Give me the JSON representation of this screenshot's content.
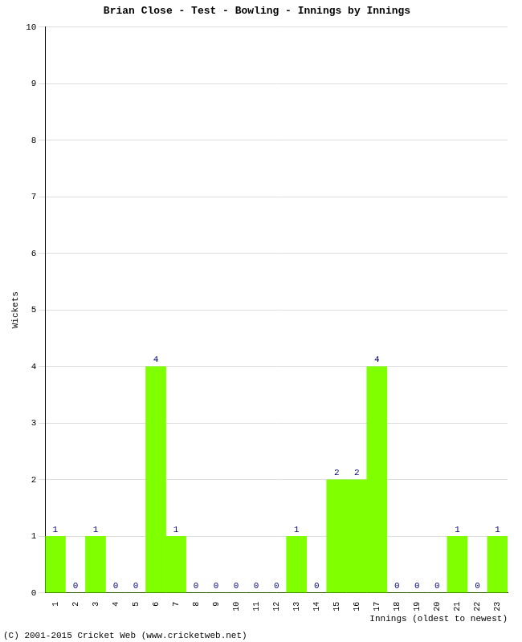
{
  "chart_data": {
    "type": "bar",
    "title": "Brian Close - Test - Bowling - Innings by Innings",
    "x_label": "Innings (oldest to newest)",
    "y_label": "Wickets",
    "categories": [
      "1",
      "2",
      "3",
      "4",
      "5",
      "6",
      "7",
      "8",
      "9",
      "10",
      "11",
      "12",
      "13",
      "14",
      "15",
      "16",
      "17",
      "18",
      "19",
      "20",
      "21",
      "22",
      "23"
    ],
    "values": [
      1,
      0,
      1,
      0,
      0,
      4,
      1,
      0,
      0,
      0,
      0,
      0,
      1,
      0,
      2,
      2,
      4,
      0,
      0,
      0,
      1,
      0,
      1
    ],
    "color": "#80ff00",
    "ylim": [
      0,
      10
    ],
    "yticks": [
      0,
      1,
      2,
      3,
      4,
      5,
      6,
      7,
      8,
      9,
      10
    ],
    "grid": true,
    "data_labels": true,
    "annotations": [
      "(C) 2001-2015 Cricket Web (www.cricketweb.net)"
    ]
  }
}
